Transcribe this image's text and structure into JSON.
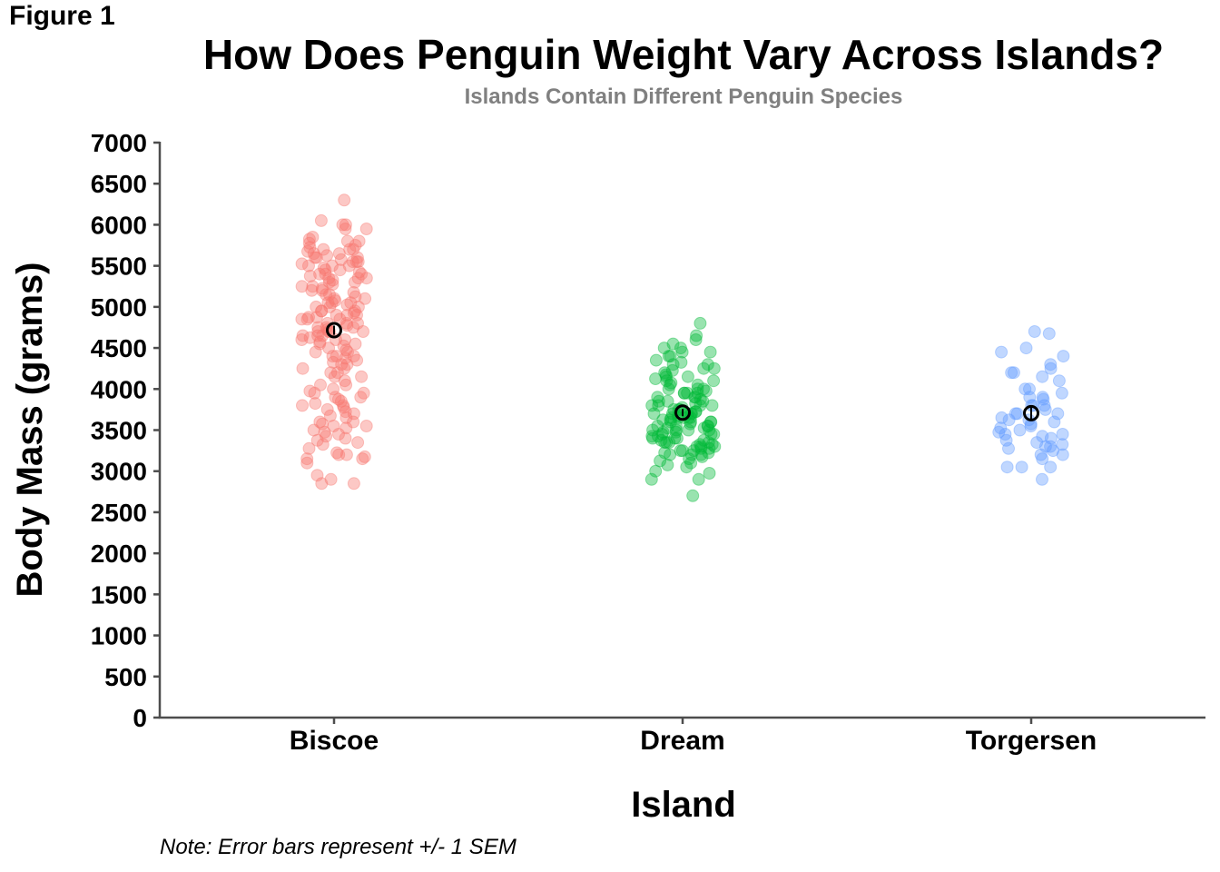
{
  "figure_label": "Figure 1",
  "note": "Note: Error bars represent +/- 1 SEM",
  "chart_data": {
    "type": "scatter",
    "title": "How Does Penguin Weight Vary Across Islands?",
    "subtitle": "Islands Contain Different Penguin Species",
    "xlabel": "Island",
    "ylabel": "Body Mass (grams)",
    "ylim": [
      0,
      7000
    ],
    "yticks": [
      0,
      500,
      1000,
      1500,
      2000,
      2500,
      3000,
      3500,
      4000,
      4500,
      5000,
      5500,
      6000,
      6500,
      7000
    ],
    "categories": [
      "Biscoe",
      "Dream",
      "Torgersen"
    ],
    "grid": false,
    "legend": "none",
    "series": [
      {
        "category": "Biscoe",
        "color": "#F8766D",
        "mean": 4716,
        "sem": 56,
        "values": [
          6300,
          6050,
          6000,
          5950,
          6000,
          5950,
          5850,
          5800,
          5800,
          5750,
          5700,
          5700,
          5700,
          5650,
          5650,
          5600,
          5600,
          5550,
          5550,
          5550,
          5500,
          5500,
          5500,
          5450,
          5400,
          5400,
          5400,
          5350,
          5350,
          5300,
          5300,
          5250,
          5200,
          5200,
          5150,
          5100,
          5100,
          5050,
          5050,
          5000,
          5000,
          5000,
          4950,
          4950,
          4900,
          4900,
          4900,
          4875,
          4850,
          4850,
          4800,
          4800,
          4775,
          4750,
          4750,
          4725,
          4700,
          4700,
          4700,
          4650,
          4650,
          4625,
          4600,
          4600,
          4575,
          4550,
          4500,
          4450,
          4400,
          4400,
          4400,
          4350,
          4300,
          4300,
          4250,
          4200,
          4200,
          4150,
          4100,
          4050,
          4000,
          3950,
          3950,
          3900,
          3900,
          3850,
          3800,
          3800,
          3775,
          3750,
          3700,
          3650,
          3600,
          3600,
          3550,
          3550,
          3500,
          3450,
          3400,
          3350,
          3200,
          3200,
          3150,
          3150,
          3100,
          2950,
          2900,
          2850,
          2850,
          4800,
          4875,
          4925,
          5050,
          5150,
          5250,
          4650,
          4450,
          4550,
          4750,
          5350,
          5450,
          5600,
          4950,
          4850,
          4700,
          4600,
          4525,
          4475,
          4375,
          4325,
          4250,
          4150,
          4050,
          3975,
          3875,
          3825,
          3725,
          3675,
          3575,
          3525,
          3475,
          3425,
          3375,
          3325,
          3275,
          3225,
          3175,
          5025,
          5075,
          5125,
          5175,
          5225,
          5275,
          5325,
          5375,
          5425,
          5475,
          5525,
          5575,
          5625,
          5675,
          5725,
          5775,
          5825
        ]
      },
      {
        "category": "Dream",
        "color": "#00BA38",
        "mean": 3713,
        "sem": 44,
        "values": [
          4800,
          4650,
          4600,
          4550,
          4500,
          4500,
          4450,
          4400,
          4350,
          4300,
          4300,
          4250,
          4200,
          4150,
          4150,
          4100,
          4100,
          4050,
          4050,
          4000,
          4000,
          3950,
          3950,
          3950,
          3900,
          3900,
          3850,
          3850,
          3800,
          3800,
          3800,
          3775,
          3750,
          3750,
          3725,
          3700,
          3700,
          3700,
          3675,
          3650,
          3650,
          3625,
          3600,
          3600,
          3575,
          3550,
          3550,
          3525,
          3500,
          3500,
          3475,
          3450,
          3450,
          3425,
          3400,
          3400,
          3375,
          3350,
          3350,
          3325,
          3300,
          3300,
          3275,
          3250,
          3250,
          3225,
          3200,
          3200,
          3150,
          3100,
          3050,
          3000,
          2975,
          2900,
          2900,
          2700,
          4400,
          4250,
          4000,
          3800,
          3650,
          3550,
          3475,
          3425,
          3350,
          3275,
          3175,
          3075,
          4075,
          3975,
          3875,
          3825,
          3725,
          3625,
          3525,
          3375,
          3325,
          3225,
          3125,
          4125,
          4175,
          4225,
          4325,
          4450,
          3700,
          3650,
          3600,
          3500,
          3450,
          3400,
          3350,
          3300,
          3250,
          3200,
          3950,
          3900,
          3850,
          3750,
          3700,
          3650,
          3600,
          3550,
          3500
        ]
      },
      {
        "category": "Torgersen",
        "color": "#619CFF",
        "mean": 3706,
        "sem": 70,
        "values": [
          4700,
          4675,
          4500,
          4450,
          4400,
          4300,
          4250,
          4200,
          4200,
          4150,
          4100,
          4000,
          4000,
          3950,
          3900,
          3900,
          3875,
          3800,
          3800,
          3800,
          3750,
          3700,
          3700,
          3650,
          3625,
          3600,
          3550,
          3500,
          3475,
          3450,
          3450,
          3400,
          3350,
          3325,
          3300,
          3300,
          3250,
          3200,
          3200,
          3150,
          3050,
          3050,
          3050,
          2900,
          3575,
          3700,
          3625,
          3525,
          3425,
          3375,
          3275
        ]
      }
    ]
  }
}
